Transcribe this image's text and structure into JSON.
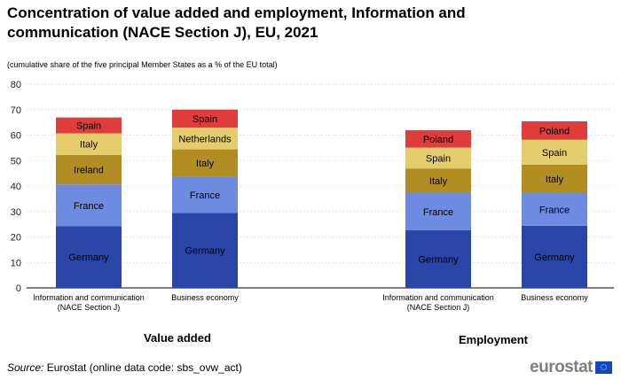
{
  "chart_data": {
    "type": "bar",
    "stacked": true,
    "title": "Concentration of value added and employment, Information and communication (NACE Section J), EU, 2021",
    "subtitle": "(cumulative  share of the five principal Member States as a % of the EU total)",
    "ylim": [
      0,
      80
    ],
    "yticks": [
      0,
      10,
      20,
      30,
      40,
      50,
      60,
      70,
      80
    ],
    "groups": [
      {
        "label": "Value added",
        "bars": [
          {
            "category_lines": [
              "Information and communication",
              "(NACE Section J)"
            ],
            "segments": [
              {
                "name": "Germany",
                "value": 24.2
              },
              {
                "name": "France",
                "value": 16.4
              },
              {
                "name": "Ireland",
                "value": 11.6
              },
              {
                "name": "Italy",
                "value": 8.5
              },
              {
                "name": "Spain",
                "value": 6.2
              }
            ]
          },
          {
            "category_lines": [
              "Business economy"
            ],
            "segments": [
              {
                "name": "Germany",
                "value": 29.4
              },
              {
                "name": "France",
                "value": 14.4
              },
              {
                "name": "Italy",
                "value": 10.6
              },
              {
                "name": "Netherlands",
                "value": 8.5
              },
              {
                "name": "Spain",
                "value": 7.1
              }
            ]
          }
        ]
      },
      {
        "label": "Employment",
        "bars": [
          {
            "category_lines": [
              "Information and communication",
              "(NACE Section J)"
            ],
            "segments": [
              {
                "name": "Germany",
                "value": 22.6
              },
              {
                "name": "France",
                "value": 14.8
              },
              {
                "name": "Italy",
                "value": 9.5
              },
              {
                "name": "Spain",
                "value": 8.2
              },
              {
                "name": "Poland",
                "value": 6.8
              }
            ]
          },
          {
            "category_lines": [
              "Business economy"
            ],
            "segments": [
              {
                "name": "Germany",
                "value": 24.4
              },
              {
                "name": "France",
                "value": 12.8
              },
              {
                "name": "Italy",
                "value": 11.2
              },
              {
                "name": "Spain",
                "value": 9.8
              },
              {
                "name": "Poland",
                "value": 7.2
              }
            ]
          }
        ]
      }
    ],
    "segment_colors": [
      "#2a44a8",
      "#6d8be0",
      "#b28e22",
      "#e3cd6c",
      "#e03c3c"
    ]
  },
  "source": {
    "prefix": "Source:",
    "text": " Eurostat (online data code: sbs_ovw_act)"
  },
  "logo": {
    "text": "eurostat"
  }
}
